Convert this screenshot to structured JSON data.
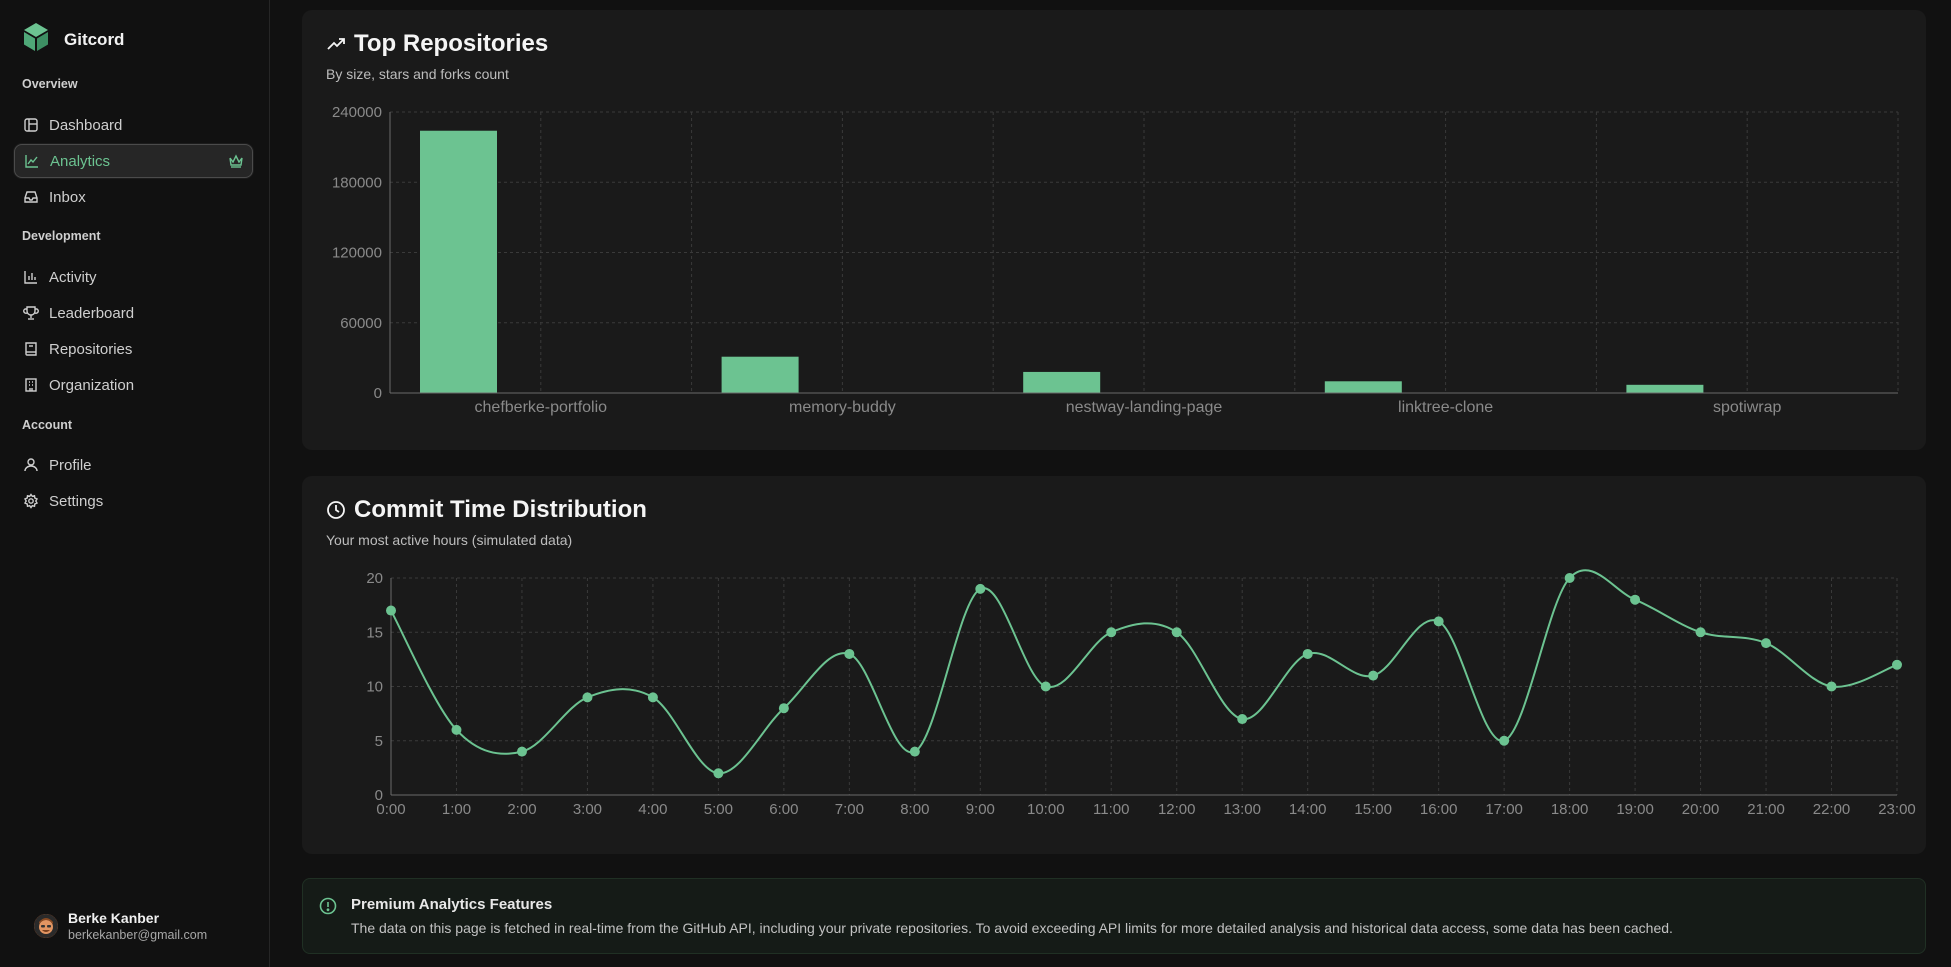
{
  "app": {
    "name": "Gitcord"
  },
  "sidebar": {
    "sections": [
      {
        "label": "Overview"
      },
      {
        "label": "Development"
      },
      {
        "label": "Account"
      }
    ],
    "items": [
      {
        "label": "Dashboard",
        "icon": "dashboard-icon"
      },
      {
        "label": "Analytics",
        "icon": "chart-line-icon",
        "active": true,
        "badge_icon": "crown-icon"
      },
      {
        "label": "Inbox",
        "icon": "inbox-icon"
      },
      {
        "label": "Activity",
        "icon": "bar-chart-icon"
      },
      {
        "label": "Leaderboard",
        "icon": "trophy-icon"
      },
      {
        "label": "Repositories",
        "icon": "book-icon"
      },
      {
        "label": "Organization",
        "icon": "building-icon"
      },
      {
        "label": "Profile",
        "icon": "user-icon"
      },
      {
        "label": "Settings",
        "icon": "gear-icon"
      }
    ],
    "user": {
      "name": "Berke Kanber",
      "email": "berkekanber@gmail.com"
    }
  },
  "top_repos": {
    "title": "Top Repositories",
    "subtitle": "By size, stars and forks count"
  },
  "commit_time": {
    "title": "Commit Time Distribution",
    "subtitle": "Your most active hours (simulated data)"
  },
  "notice": {
    "title": "Premium Analytics Features",
    "body": "The data on this page is fetched in real-time from the GitHub API, including your private repositories. To avoid exceeding API limits for more detailed analysis and historical data access, some data has been cached."
  },
  "colors": {
    "accent": "#6cc391",
    "background": "#111111",
    "card": "#1a1a1a"
  },
  "chart_data": [
    {
      "type": "bar",
      "categories": [
        "chefberke-portfolio",
        "memory-buddy",
        "nestway-landing-page",
        "linktree-clone",
        "spotiwrap"
      ],
      "values": [
        224000,
        31000,
        18000,
        10000,
        7000
      ],
      "yticks": [
        0,
        60000,
        120000,
        180000,
        240000
      ],
      "ylim": [
        0,
        240000
      ],
      "grid": true
    },
    {
      "type": "line",
      "categories": [
        "0:00",
        "1:00",
        "2:00",
        "3:00",
        "4:00",
        "5:00",
        "6:00",
        "7:00",
        "8:00",
        "9:00",
        "10:00",
        "11:00",
        "12:00",
        "13:00",
        "14:00",
        "15:00",
        "16:00",
        "17:00",
        "18:00",
        "19:00",
        "20:00",
        "21:00",
        "22:00",
        "23:00"
      ],
      "values": [
        17,
        6,
        4,
        9,
        9,
        2,
        8,
        13,
        4,
        19,
        10,
        15,
        15,
        7,
        13,
        11,
        16,
        5,
        20,
        18,
        15,
        14,
        10,
        12
      ],
      "yticks": [
        0,
        5,
        10,
        15,
        20
      ],
      "ylim": [
        0,
        20
      ],
      "grid": true
    }
  ]
}
